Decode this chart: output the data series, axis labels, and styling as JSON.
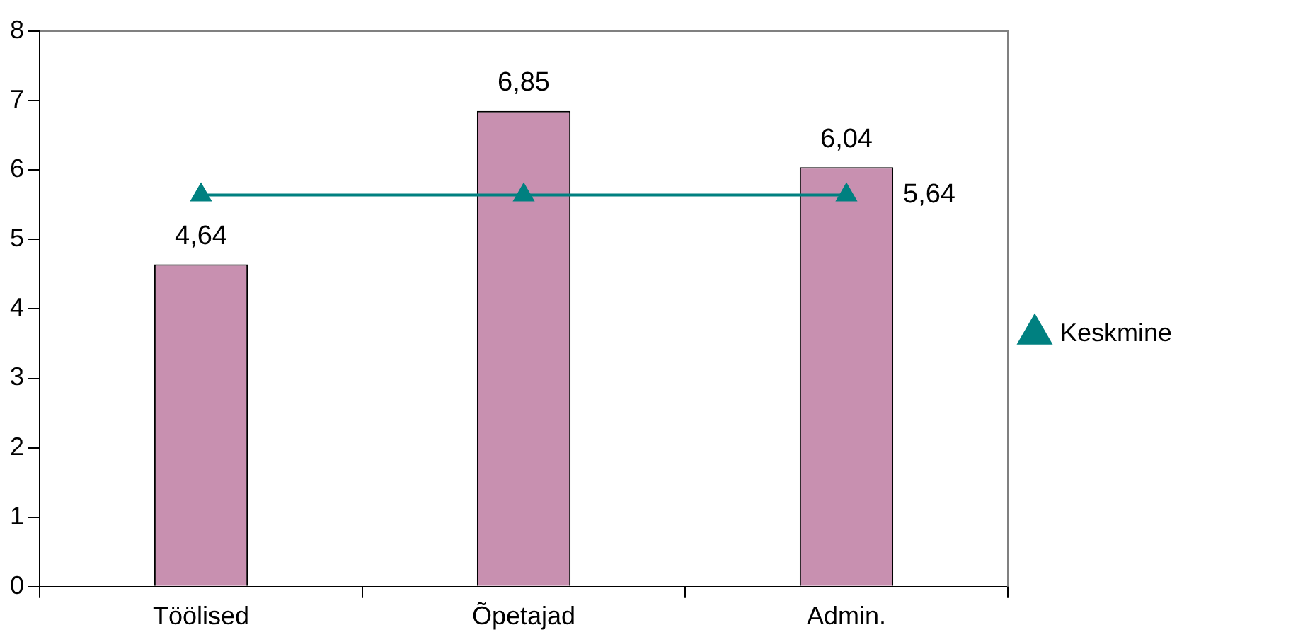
{
  "chart_data": {
    "type": "bar",
    "categories": [
      "Töölised",
      "Õpetajad",
      "Admin."
    ],
    "series": [
      {
        "color": "#c890b0",
        "values": [
          4.64,
          6.85,
          6.04
        ],
        "value_labels": [
          "4,64",
          "6,85",
          "6,04"
        ]
      },
      {
        "type": "line",
        "name": "Keskmine",
        "color": "#008080",
        "values": [
          5.64,
          5.64,
          5.64
        ],
        "value_labels": [
          null,
          null,
          "5,64"
        ]
      }
    ],
    "ylim": [
      0,
      8
    ],
    "yticks": [
      0,
      1,
      2,
      3,
      4,
      5,
      6,
      7,
      8
    ],
    "grid": false,
    "legend": "right",
    "marker": "triangle"
  }
}
